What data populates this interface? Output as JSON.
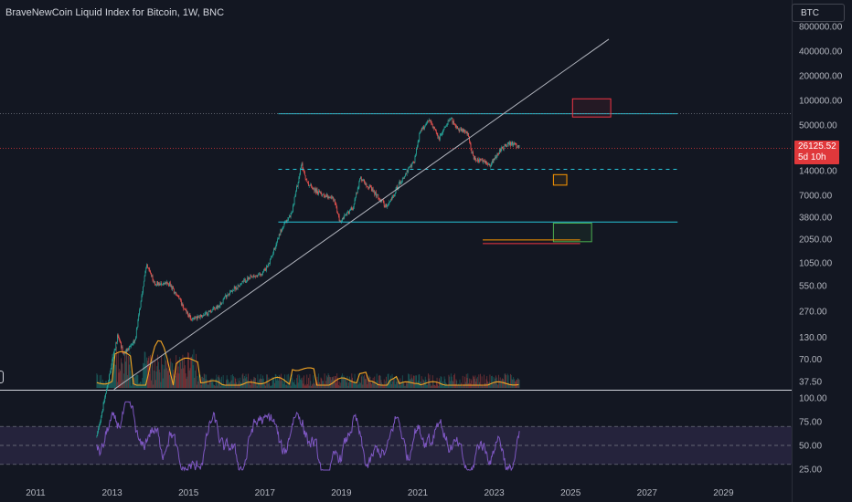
{
  "header": {
    "title": "BraveNewCoin Liquid Index for Bitcoin, 1W, BNC",
    "currency_button": "BTC"
  },
  "last_price": {
    "value": "26125.52",
    "countdown": "5d 10h",
    "color": "#e0383b"
  },
  "colors": {
    "background": "#131722",
    "up_candle": "#26a69a",
    "down_candle": "#ef5350",
    "volume_ma": "#f5a623",
    "rsi_line": "#7e57c2",
    "rsi_band": "#2b2744",
    "cyan_level": "#26c6da",
    "trendline": "#b2b5be"
  },
  "chart_data": [
    {
      "type": "candlestick",
      "title": "BraveNewCoin Liquid Index for Bitcoin, 1W, BNC",
      "y_scale": "log",
      "x_tick_labels": [
        "2011",
        "2013",
        "2015",
        "2017",
        "2019",
        "2021",
        "2023",
        "2025",
        "2027",
        "2029"
      ],
      "y_tick_labels": [
        "800000.00",
        "400000.00",
        "200000.00",
        "100000.00",
        "50000.00",
        "14000.00",
        "7000.00",
        "3800.00",
        "2050.00",
        "1050.00",
        "550.00",
        "270.00",
        "130.00",
        "70.00",
        "37.50"
      ],
      "y_ticks": [
        800000,
        400000,
        200000,
        100000,
        50000,
        14000,
        7000,
        3800,
        2050,
        1050,
        550,
        270,
        130,
        70,
        37.5
      ],
      "close_anchors": [
        [
          2012.6,
          8
        ],
        [
          2013.15,
          140
        ],
        [
          2013.3,
          80
        ],
        [
          2013.6,
          120
        ],
        [
          2013.9,
          1000
        ],
        [
          2014.1,
          600
        ],
        [
          2014.5,
          580
        ],
        [
          2014.8,
          350
        ],
        [
          2015.05,
          220
        ],
        [
          2015.4,
          240
        ],
        [
          2015.8,
          320
        ],
        [
          2016.0,
          430
        ],
        [
          2016.5,
          650
        ],
        [
          2016.9,
          760
        ],
        [
          2017.1,
          1000
        ],
        [
          2017.4,
          2500
        ],
        [
          2017.7,
          4300
        ],
        [
          2017.96,
          17000
        ],
        [
          2018.1,
          10000
        ],
        [
          2018.4,
          7500
        ],
        [
          2018.8,
          6400
        ],
        [
          2018.96,
          3300
        ],
        [
          2019.3,
          5000
        ],
        [
          2019.5,
          11500
        ],
        [
          2019.9,
          7200
        ],
        [
          2020.2,
          5000
        ],
        [
          2020.5,
          9500
        ],
        [
          2020.9,
          18000
        ],
        [
          2021.05,
          40000
        ],
        [
          2021.3,
          60000
        ],
        [
          2021.55,
          34000
        ],
        [
          2021.85,
          64000
        ],
        [
          2022.0,
          46000
        ],
        [
          2022.3,
          40000
        ],
        [
          2022.45,
          20000
        ],
        [
          2022.9,
          16500
        ],
        [
          2023.1,
          23000
        ],
        [
          2023.3,
          29000
        ],
        [
          2023.5,
          30000
        ],
        [
          2023.65,
          26125.52
        ]
      ],
      "annotations": {
        "horizontal_levels": [
          69000,
          14500,
          3300
        ],
        "dotted_levels": [
          69000,
          26125.52
        ],
        "trendline": [
          [
            2013.05,
            30
          ],
          [
            2026.0,
            560000
          ]
        ],
        "boxes": [
          {
            "color": "#f23645",
            "x": [
              2025.05,
              2026.05
            ],
            "y": [
              63000,
              105000
            ]
          },
          {
            "color": "#ff9800",
            "x": [
              2024.55,
              2024.9
            ],
            "y": [
              9300,
              12500
            ]
          },
          {
            "color": "#4caf50",
            "x": [
              2024.55,
              2025.55
            ],
            "y": [
              1900,
              3200
            ]
          }
        ],
        "segments": [
          {
            "color": "#ff9800",
            "x": [
              2022.7,
              2025.25
            ],
            "y": 2000
          },
          {
            "color": "#f23645",
            "x": [
              2022.7,
              2025.25
            ],
            "y": 1800
          }
        ]
      }
    },
    {
      "type": "line",
      "series": [
        {
          "name": "",
          "values_hint": "RSI oscillating 25-95"
        }
      ],
      "y_tick_labels": [
        "100.00",
        "75.00",
        "50.00",
        "25.00"
      ],
      "y_ticks": [
        100,
        75,
        50,
        25
      ],
      "band": [
        30,
        70
      ]
    }
  ]
}
